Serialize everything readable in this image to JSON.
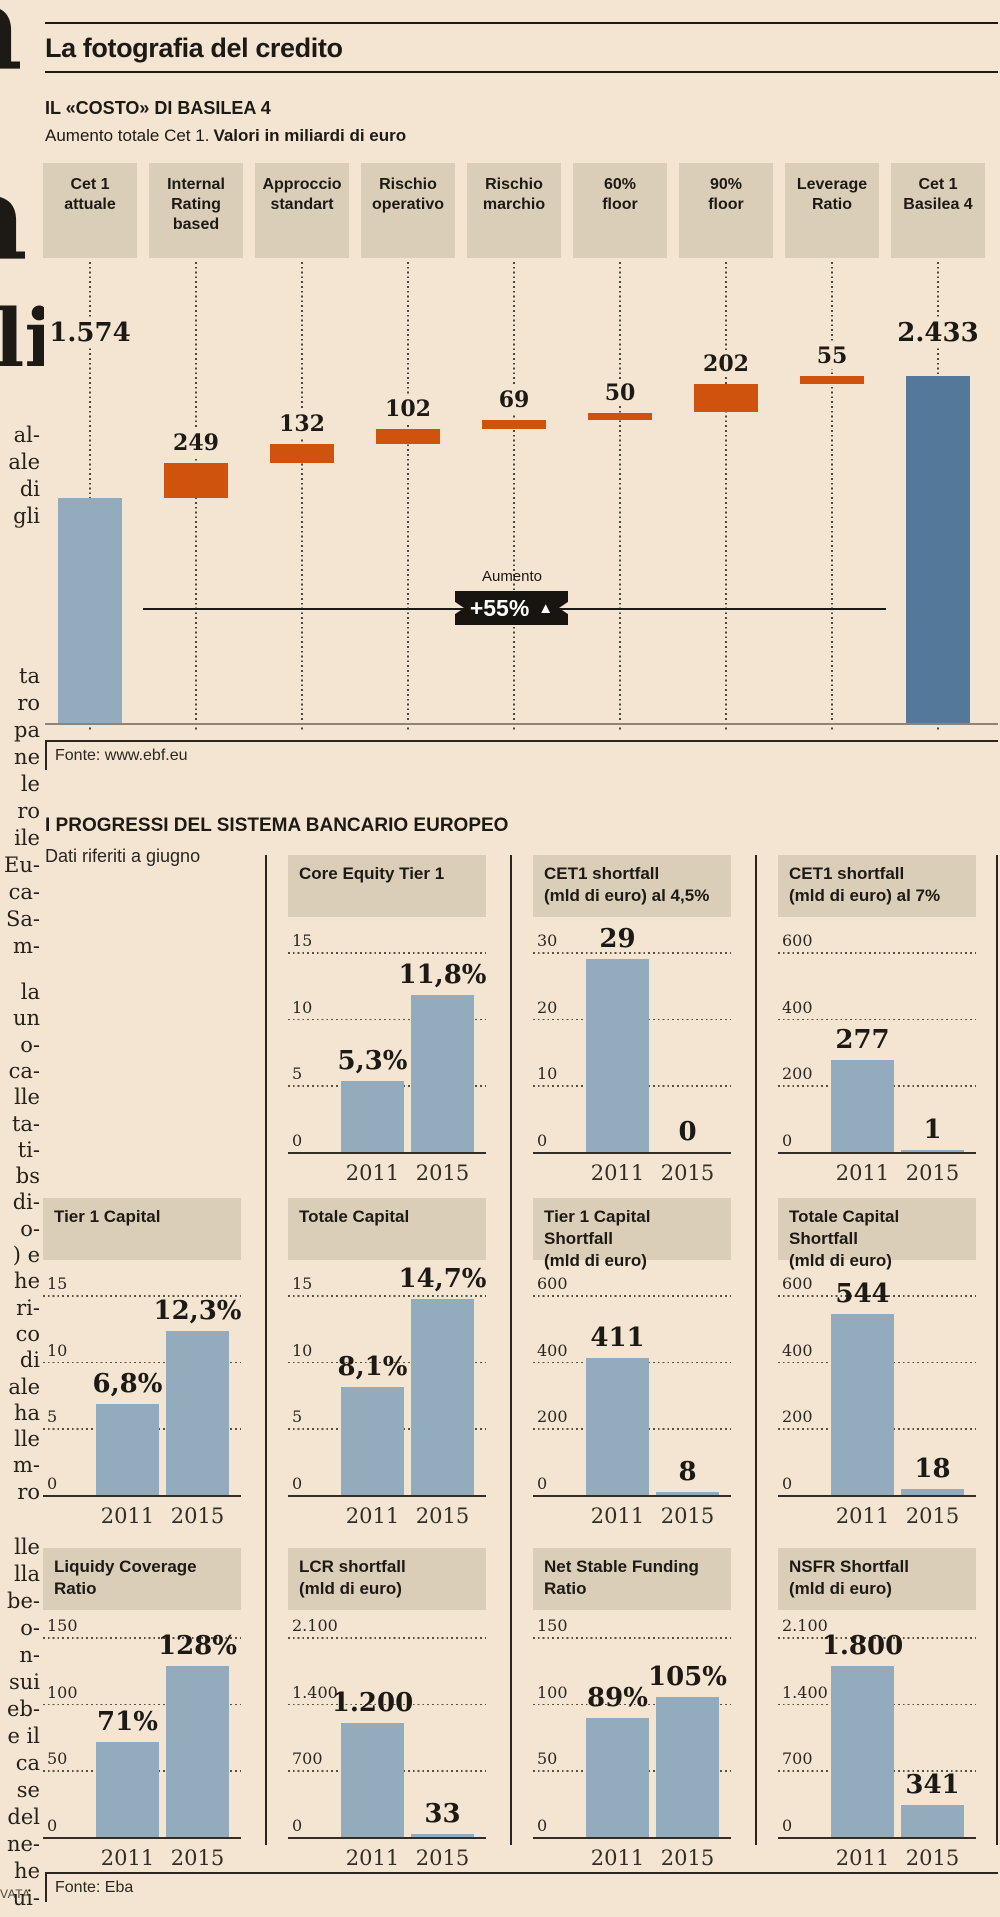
{
  "masthead": {
    "title": "La fotografia del credito"
  },
  "basilea_section": {
    "title": "IL «COSTO» DI BASILEA 4",
    "subtitle_plain": "Aumento totale Cet 1.",
    "subtitle_bold": "Valori in miliardi di euro",
    "source": "Fonte: www.ebf.eu"
  },
  "progressi_section": {
    "title": "I PROGRESSI DEL SISTEMA BANCARIO EUROPEO",
    "subtitle": "Dati riferiti a giugno",
    "source": "Fonte: Eba"
  },
  "colors": {
    "background": "#f3e5d1",
    "panel_tan": "#dbceb8",
    "bar_blue": "#92abbd",
    "bar_dark_blue": "#53789a",
    "accent_orange": "#cf520d",
    "ink": "#1d1914"
  },
  "margin_column": {
    "big_glyphs": [
      "a",
      "a",
      "li"
    ],
    "fragments_a": [
      "al-",
      "ale",
      "di",
      "gli"
    ],
    "fragments_b": [
      "ta",
      "ro",
      "pa",
      "ne",
      "le",
      "ro",
      "ile",
      "Eu-",
      "ca-",
      "Sa-",
      "m-"
    ],
    "fragments_c": [
      "la",
      "un",
      "o-",
      "ca-",
      "lle",
      "ta-",
      "ti-",
      "bs",
      "di-",
      "o-",
      ") e",
      "he",
      "ri-",
      "co",
      "di",
      "ale",
      "ha",
      "lle",
      "m-",
      "ro"
    ],
    "fragments_d": [
      "lle",
      "lla",
      "be-",
      "o-",
      "n-",
      "sui",
      "eb-",
      "e il",
      "ca",
      "se",
      "del",
      "ne-",
      "he",
      "ui-"
    ],
    "watermark": "VATA"
  },
  "chart_data": [
    {
      "id": "basilea-waterfall",
      "type": "bar",
      "subtype": "waterfall",
      "title": "IL «COSTO» DI BASILEA 4",
      "subtitle": "Aumento totale Cet 1. Valori in miliardi di euro",
      "unit": "miliardi di euro",
      "categories": [
        "Cet 1\nattuale",
        "Internal\nRating\nbased",
        "Approccio\nstandart",
        "Rischio\noperativo",
        "Rischio\nmarchio",
        "60%\nfloor",
        "90%\nfloor",
        "Leverage\nRatio",
        "Cet 1\nBasilea 4"
      ],
      "start": {
        "category": "Cet 1 attuale",
        "value": 1574,
        "label": "1.574"
      },
      "increments": [
        {
          "category": "Internal Rating based",
          "value": 249,
          "label": "249"
        },
        {
          "category": "Approccio standart",
          "value": 132,
          "label": "132"
        },
        {
          "category": "Rischio operativo",
          "value": 102,
          "label": "102"
        },
        {
          "category": "Rischio marchio",
          "value": 69,
          "label": "69"
        },
        {
          "category": "60% floor",
          "value": 50,
          "label": "50"
        },
        {
          "category": "90% floor",
          "value": 202,
          "label": "202"
        },
        {
          "category": "Leverage Ratio",
          "value": 55,
          "label": "55"
        }
      ],
      "end": {
        "category": "Cet 1 Basilea 4",
        "value": 2433,
        "label": "2.433"
      },
      "annotation": {
        "label": "Aumento",
        "value": "+55%",
        "arrow": "▲"
      },
      "source": "Fonte: www.ebf.eu"
    },
    {
      "id": "core-equity-tier-1",
      "type": "bar",
      "row": 1,
      "col": 1,
      "title": "Core Equity Tier 1",
      "ymax": 15,
      "ticks": [
        "15",
        "10",
        "5",
        "0"
      ],
      "categories": [
        "2011",
        "2015"
      ],
      "values": [
        5.3,
        11.8
      ],
      "labels": [
        "5,3%",
        "11,8%"
      ]
    },
    {
      "id": "cet1-shortfall-45",
      "type": "bar",
      "row": 1,
      "col": 2,
      "title": "CET1 shortfall\n(mld di euro) al 4,5%",
      "ymax": 30,
      "ticks": [
        "30",
        "20",
        "10",
        "0"
      ],
      "categories": [
        "2011",
        "2015"
      ],
      "values": [
        29,
        0
      ],
      "labels": [
        "29",
        "0"
      ]
    },
    {
      "id": "cet1-shortfall-7",
      "type": "bar",
      "row": 1,
      "col": 3,
      "title": "CET1 shortfall\n(mld di euro) al 7%",
      "ymax": 600,
      "ticks": [
        "600",
        "400",
        "200",
        "0"
      ],
      "categories": [
        "2011",
        "2015"
      ],
      "values": [
        277,
        1
      ],
      "labels": [
        "277",
        "1"
      ]
    },
    {
      "id": "tier-1-capital",
      "type": "bar",
      "row": 2,
      "col": 0,
      "title": "Tier 1 Capital",
      "ymax": 15,
      "ticks": [
        "15",
        "10",
        "5",
        "0"
      ],
      "categories": [
        "2011",
        "2015"
      ],
      "values": [
        6.8,
        12.3
      ],
      "labels": [
        "6,8%",
        "12,3%"
      ]
    },
    {
      "id": "totale-capital",
      "type": "bar",
      "row": 2,
      "col": 1,
      "title": "Totale Capital",
      "ymax": 15,
      "ticks": [
        "15",
        "10",
        "5",
        "0"
      ],
      "categories": [
        "2011",
        "2015"
      ],
      "values": [
        8.1,
        14.7
      ],
      "labels": [
        "8,1%",
        "14,7%"
      ]
    },
    {
      "id": "tier-1-capital-shortfall",
      "type": "bar",
      "row": 2,
      "col": 2,
      "title": "Tier 1 Capital Shortfall\n(mld di euro)",
      "ymax": 600,
      "ticks": [
        "600",
        "400",
        "200",
        "0"
      ],
      "categories": [
        "2011",
        "2015"
      ],
      "values": [
        411,
        8
      ],
      "labels": [
        "411",
        "8"
      ]
    },
    {
      "id": "totale-capital-shortfall",
      "type": "bar",
      "row": 2,
      "col": 3,
      "title": "Totale Capital Shortfall\n(mld di euro)",
      "ymax": 600,
      "ticks": [
        "600",
        "400",
        "200",
        "0"
      ],
      "categories": [
        "2011",
        "2015"
      ],
      "values": [
        544,
        18
      ],
      "labels": [
        "544",
        "18"
      ]
    },
    {
      "id": "liquidy-coverage-ratio",
      "type": "bar",
      "row": 3,
      "col": 0,
      "title": "Liquidy Coverage\nRatio",
      "ymax": 150,
      "ticks": [
        "150",
        "100",
        "50",
        "0"
      ],
      "categories": [
        "2011",
        "2015"
      ],
      "values": [
        71,
        128
      ],
      "labels": [
        "71%",
        "128%"
      ]
    },
    {
      "id": "lcr-shortfall",
      "type": "bar",
      "row": 3,
      "col": 1,
      "title": "LCR shortfall\n(mld di euro)",
      "ymax": 2100,
      "ticks": [
        "2.100",
        "1.400",
        "700",
        "0"
      ],
      "categories": [
        "2011",
        "2015"
      ],
      "values": [
        1200,
        33
      ],
      "labels": [
        "1.200",
        "33"
      ]
    },
    {
      "id": "net-stable-funding-ratio",
      "type": "bar",
      "row": 3,
      "col": 2,
      "title": "Net Stable Funding\nRatio",
      "ymax": 150,
      "ticks": [
        "150",
        "100",
        "50",
        "0"
      ],
      "categories": [
        "2011",
        "2015"
      ],
      "values": [
        89,
        105
      ],
      "labels": [
        "89%",
        "105%"
      ]
    },
    {
      "id": "nsfr-shortfall",
      "type": "bar",
      "row": 3,
      "col": 3,
      "title": "NSFR Shortfall\n(mld di euro)",
      "ymax": 2100,
      "ticks": [
        "2.100",
        "1.400",
        "700",
        "0"
      ],
      "categories": [
        "2011",
        "2015"
      ],
      "values": [
        1800,
        341
      ],
      "labels": [
        "1.800",
        "341"
      ]
    }
  ]
}
